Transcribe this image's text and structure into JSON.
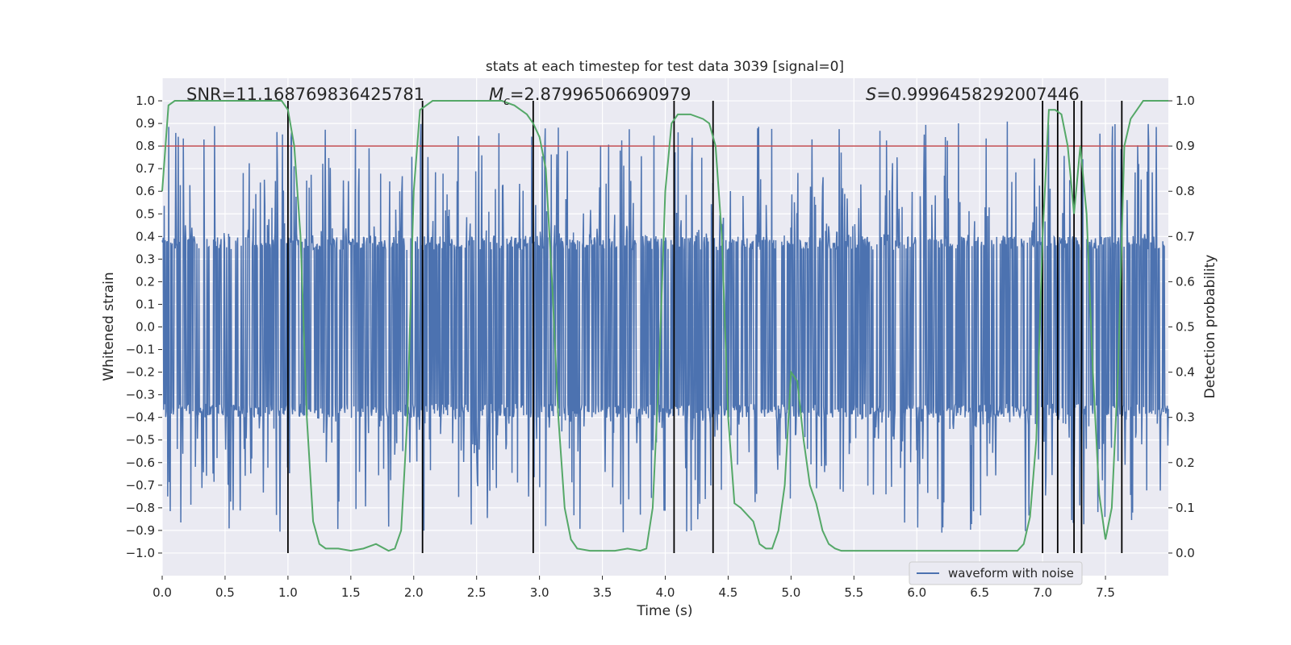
{
  "chart_data": {
    "type": "line",
    "title": "stats at each timestep for test data 3039 [signal=0]",
    "xlabel": "Time (s)",
    "ylabel_left": "Whitened strain",
    "ylabel_right": "Detection probability",
    "xlim": [
      0,
      8
    ],
    "ylim_left": [
      -1.1,
      1.1
    ],
    "ylim_right": [
      -0.05,
      1.05
    ],
    "x_ticks": [
      0.0,
      0.5,
      1.0,
      1.5,
      2.0,
      2.5,
      3.0,
      3.5,
      4.0,
      4.5,
      5.0,
      5.5,
      6.0,
      6.5,
      7.0,
      7.5
    ],
    "x_tick_labels": [
      "0.0",
      "0.5",
      "1.0",
      "1.5",
      "2.0",
      "2.5",
      "3.0",
      "3.5",
      "4.0",
      "4.5",
      "5.0",
      "5.5",
      "6.0",
      "6.5",
      "7.0",
      "7.5"
    ],
    "y_left_ticks": [
      1.0,
      0.9,
      0.8,
      0.7,
      0.6,
      0.5,
      0.4,
      0.3,
      0.2,
      0.1,
      0.0,
      -0.1,
      -0.2,
      -0.3,
      -0.4,
      -0.5,
      -0.6,
      -0.7,
      -0.8,
      -0.9,
      -1.0
    ],
    "y_left_tick_labels": [
      "1.0",
      "0.9",
      "0.8",
      "0.7",
      "0.6",
      "0.5",
      "0.4",
      "0.3",
      "0.2",
      "0.1",
      "0.0",
      "−0.1",
      "−0.2",
      "−0.3",
      "−0.4",
      "−0.5",
      "−0.6",
      "−0.7",
      "−0.8",
      "−0.9",
      "−1.0"
    ],
    "y_right_ticks": [
      1.0,
      0.9,
      0.8,
      0.7,
      0.6,
      0.5,
      0.4,
      0.3,
      0.2,
      0.1,
      0.0
    ],
    "y_right_tick_labels": [
      "1.0",
      "0.9",
      "0.8",
      "0.7",
      "0.6",
      "0.5",
      "0.4",
      "0.3",
      "0.2",
      "0.1",
      "0.0"
    ],
    "grid": true,
    "annotations": {
      "snr": "SNR=11.168769836425781",
      "mc_symbol": "M",
      "mc_subscript": "c",
      "mc_value": "=2.87996506690979",
      "s_symbol": "S",
      "s_value": "=0.9996458292007446"
    },
    "legend": {
      "placement": "lower-right",
      "entries": [
        "waveform with noise"
      ]
    },
    "threshold": {
      "axis": "left",
      "value": 0.8,
      "color": "#c44e52"
    },
    "vertical_markers": [
      1.0,
      2.07,
      2.95,
      4.07,
      4.38,
      7.0,
      7.12,
      7.25,
      7.31,
      7.63
    ],
    "waveform": {
      "name": "waveform with noise",
      "color": "#4c72b0",
      "x_range": [
        0,
        8
      ],
      "sample_count": 2000,
      "dense_band": [
        -0.4,
        0.4
      ],
      "peak_range": [
        -0.98,
        0.91
      ]
    },
    "series": [
      {
        "axis": "right",
        "color": "#55a868",
        "x": [
          0.0,
          0.05,
          0.1,
          0.2,
          0.3,
          0.4,
          0.5,
          0.6,
          0.7,
          0.8,
          0.9,
          0.95,
          1.0,
          1.05,
          1.1,
          1.15,
          1.2,
          1.25,
          1.3,
          1.4,
          1.5,
          1.6,
          1.7,
          1.8,
          1.85,
          1.9,
          1.95,
          2.0,
          2.05,
          2.1,
          2.15,
          2.2,
          2.3,
          2.4,
          2.5,
          2.6,
          2.7,
          2.8,
          2.9,
          2.95,
          3.0,
          3.05,
          3.1,
          3.15,
          3.2,
          3.25,
          3.3,
          3.4,
          3.5,
          3.6,
          3.7,
          3.8,
          3.85,
          3.9,
          3.95,
          4.0,
          4.05,
          4.1,
          4.15,
          4.2,
          4.3,
          4.35,
          4.4,
          4.45,
          4.5,
          4.55,
          4.6,
          4.7,
          4.75,
          4.8,
          4.85,
          4.9,
          4.95,
          5.0,
          5.05,
          5.1,
          5.15,
          5.2,
          5.25,
          5.3,
          5.35,
          5.4,
          5.5,
          5.6,
          5.7,
          5.8,
          5.9,
          6.0,
          6.1,
          6.2,
          6.3,
          6.4,
          6.5,
          6.6,
          6.7,
          6.8,
          6.85,
          6.9,
          6.95,
          7.0,
          7.05,
          7.1,
          7.15,
          7.2,
          7.25,
          7.3,
          7.35,
          7.4,
          7.45,
          7.5,
          7.55,
          7.6,
          7.65,
          7.7,
          7.75,
          7.8,
          7.85,
          7.9,
          7.95,
          8.0
        ],
        "values": [
          0.8,
          0.99,
          1.0,
          1.0,
          1.0,
          1.0,
          1.0,
          1.0,
          1.0,
          1.0,
          1.0,
          1.0,
          0.98,
          0.9,
          0.7,
          0.3,
          0.07,
          0.02,
          0.01,
          0.01,
          0.005,
          0.01,
          0.02,
          0.005,
          0.01,
          0.05,
          0.3,
          0.8,
          0.98,
          0.99,
          1.0,
          1.0,
          1.0,
          1.0,
          1.0,
          1.0,
          1.0,
          0.99,
          0.97,
          0.95,
          0.92,
          0.85,
          0.6,
          0.3,
          0.1,
          0.03,
          0.01,
          0.005,
          0.005,
          0.005,
          0.01,
          0.005,
          0.01,
          0.1,
          0.4,
          0.8,
          0.95,
          0.97,
          0.97,
          0.97,
          0.96,
          0.95,
          0.9,
          0.7,
          0.3,
          0.11,
          0.1,
          0.07,
          0.02,
          0.01,
          0.01,
          0.05,
          0.15,
          0.4,
          0.38,
          0.25,
          0.15,
          0.11,
          0.05,
          0.02,
          0.01,
          0.005,
          0.005,
          0.005,
          0.005,
          0.005,
          0.005,
          0.005,
          0.005,
          0.005,
          0.005,
          0.005,
          0.005,
          0.005,
          0.005,
          0.005,
          0.02,
          0.08,
          0.25,
          0.7,
          0.98,
          0.98,
          0.97,
          0.9,
          0.75,
          0.9,
          0.75,
          0.4,
          0.13,
          0.03,
          0.1,
          0.4,
          0.9,
          0.96,
          0.98,
          1.0,
          1.0,
          1.0,
          1.0,
          1.0
        ]
      }
    ]
  }
}
